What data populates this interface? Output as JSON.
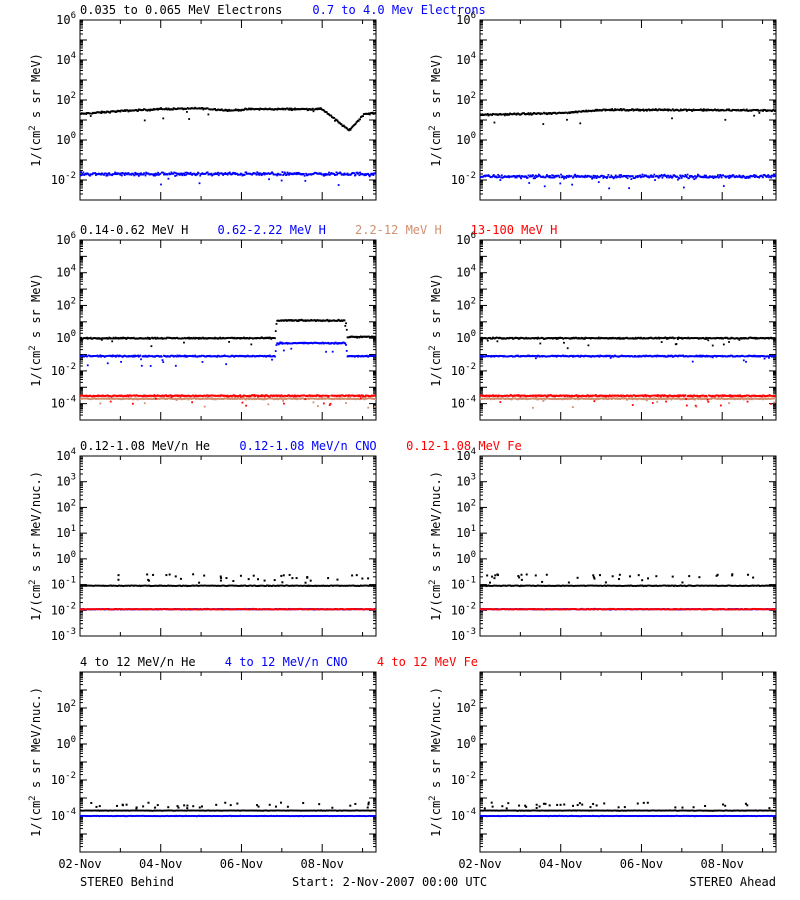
{
  "colors": {
    "black": "#000000",
    "blue": "#0000ff",
    "tan": "#d08f6f",
    "red": "#ff0000"
  },
  "footer": {
    "left": "STEREO Behind",
    "center": "Start:  2-Nov-2007 00:00 UTC",
    "right": "STEREO Ahead"
  },
  "chart_data": [
    {
      "id": "electrons-behind",
      "type": "scatter",
      "spacecraft": "STEREO Behind",
      "ylabel": "1/(cm² s sr MeV)",
      "yscale": "log",
      "ylim": [
        0.001,
        1000000
      ],
      "ytick_exponents": [
        -2,
        0,
        2,
        4,
        6
      ],
      "xlim": [
        "2007-11-02",
        "2007-11-09T08:00"
      ],
      "xticks": [
        "02-Nov",
        "04-Nov",
        "06-Nov",
        "08-Nov"
      ],
      "legend": [
        {
          "text": "0.035 to 0.065 MeV Electrons",
          "color": "#000000"
        },
        {
          "text": "0.7 to 4.0 Mev Electrons",
          "color": "#0000ff"
        }
      ],
      "series": [
        {
          "name": "0.035 to 0.065 MeV Electrons",
          "color": "#000000",
          "x": [
            "2007-11-02",
            "2007-11-03",
            "2007-11-04",
            "2007-11-05",
            "2007-11-05T18:00",
            "2007-11-06T06:00",
            "2007-11-07",
            "2007-11-08",
            "2007-11-08T16:00",
            "2007-11-09T01:00",
            "2007-11-09T08:00"
          ],
          "values": [
            20,
            28,
            35,
            38,
            30,
            35,
            35,
            35,
            3,
            20,
            22
          ]
        },
        {
          "name": "0.7 to 4.0 Mev Electrons",
          "color": "#0000ff",
          "x": [
            "2007-11-02",
            "2007-11-09T08:00"
          ],
          "values": [
            0.02,
            0.02
          ]
        }
      ]
    },
    {
      "id": "electrons-ahead",
      "type": "scatter",
      "spacecraft": "STEREO Ahead",
      "ylabel": "1/(cm² s sr MeV)",
      "yscale": "log",
      "ylim": [
        0.001,
        1000000
      ],
      "ytick_exponents": [
        -2,
        0,
        2,
        4,
        6
      ],
      "xlim": [
        "2007-11-02",
        "2007-11-09T08:00"
      ],
      "xticks": [
        "02-Nov",
        "04-Nov",
        "06-Nov",
        "08-Nov"
      ],
      "series": [
        {
          "name": "0.035 to 0.065 MeV Electrons",
          "color": "#000000",
          "x": [
            "2007-11-02",
            "2007-11-04",
            "2007-11-05",
            "2007-11-07",
            "2007-11-09T08:00"
          ],
          "values": [
            18,
            22,
            32,
            32,
            30
          ]
        },
        {
          "name": "0.7 to 4.0 Mev Electrons",
          "color": "#0000ff",
          "x": [
            "2007-11-02",
            "2007-11-09T08:00"
          ],
          "values": [
            0.015,
            0.015
          ]
        }
      ]
    },
    {
      "id": "protons-behind",
      "type": "scatter",
      "spacecraft": "STEREO Behind",
      "ylabel": "1/(cm² s sr MeV)",
      "yscale": "log",
      "ylim": [
        1e-05,
        1000000
      ],
      "ytick_exponents": [
        -4,
        -2,
        0,
        2,
        4,
        6
      ],
      "xlim": [
        "2007-11-02",
        "2007-11-09T08:00"
      ],
      "xticks": [
        "02-Nov",
        "04-Nov",
        "06-Nov",
        "08-Nov"
      ],
      "legend": [
        {
          "text": "0.14-0.62 MeV H",
          "color": "#000000"
        },
        {
          "text": "0.62-2.22 MeV H",
          "color": "#0000ff"
        },
        {
          "text": "2.2-12 MeV H",
          "color": "#d08f6f"
        },
        {
          "text": "13-100 MeV H",
          "color": "#ff0000"
        }
      ],
      "series": [
        {
          "name": "0.14-0.62 MeV H",
          "color": "#000000",
          "x": [
            "2007-11-02",
            "2007-11-06T20:00",
            "2007-11-06T21:00",
            "2007-11-08T14:00",
            "2007-11-08T15:00",
            "2007-11-09T08:00"
          ],
          "values": [
            1,
            1,
            12,
            12,
            1.2,
            1.2
          ]
        },
        {
          "name": "0.62-2.22 MeV H",
          "color": "#0000ff",
          "x": [
            "2007-11-02",
            "2007-11-06T20:00",
            "2007-11-06T21:00",
            "2007-11-08T14:00",
            "2007-11-08T15:00",
            "2007-11-09T08:00"
          ],
          "values": [
            0.08,
            0.08,
            0.5,
            0.5,
            0.08,
            0.08
          ]
        },
        {
          "name": "2.2-12 MeV H",
          "color": "#d08f6f",
          "x": [
            "2007-11-02",
            "2007-11-09T08:00"
          ],
          "values": [
            0.0002,
            0.0002
          ]
        },
        {
          "name": "13-100 MeV H",
          "color": "#ff0000",
          "x": [
            "2007-11-02",
            "2007-11-09T08:00"
          ],
          "values": [
            0.0003,
            0.0003
          ]
        }
      ]
    },
    {
      "id": "protons-ahead",
      "type": "scatter",
      "spacecraft": "STEREO Ahead",
      "ylabel": "1/(cm² s sr MeV)",
      "yscale": "log",
      "ylim": [
        1e-05,
        1000000
      ],
      "ytick_exponents": [
        -4,
        -2,
        0,
        2,
        4,
        6
      ],
      "xlim": [
        "2007-11-02",
        "2007-11-09T08:00"
      ],
      "xticks": [
        "02-Nov",
        "04-Nov",
        "06-Nov",
        "08-Nov"
      ],
      "series": [
        {
          "name": "0.14-0.62 MeV H",
          "color": "#000000",
          "x": [
            "2007-11-02",
            "2007-11-09T08:00"
          ],
          "values": [
            1,
            1
          ]
        },
        {
          "name": "0.62-2.22 MeV H",
          "color": "#0000ff",
          "x": [
            "2007-11-02",
            "2007-11-09T08:00"
          ],
          "values": [
            0.08,
            0.08
          ]
        },
        {
          "name": "2.2-12 MeV H",
          "color": "#d08f6f",
          "x": [
            "2007-11-02",
            "2007-11-09T08:00"
          ],
          "values": [
            0.0002,
            0.0002
          ]
        },
        {
          "name": "13-100 MeV H",
          "color": "#ff0000",
          "x": [
            "2007-11-02",
            "2007-11-09T08:00"
          ],
          "values": [
            0.0003,
            0.0003
          ]
        }
      ]
    },
    {
      "id": "heavy-low-behind",
      "type": "scatter",
      "spacecraft": "STEREO Behind",
      "ylabel": "1/(cm² s sr MeV/nuc.)",
      "yscale": "log",
      "ylim": [
        0.001,
        10000
      ],
      "ytick_exponents": [
        -3,
        -2,
        -1,
        0,
        1,
        2,
        3,
        4
      ],
      "xlim": [
        "2007-11-02",
        "2007-11-09T08:00"
      ],
      "xticks": [
        "02-Nov",
        "04-Nov",
        "06-Nov",
        "08-Nov"
      ],
      "legend": [
        {
          "text": "0.12-1.08 MeV/n He",
          "color": "#000000"
        },
        {
          "text": "0.12-1.08 MeV/n CNO",
          "color": "#0000ff"
        },
        {
          "text": "0.12-1.08 MeV Fe",
          "color": "#ff0000"
        }
      ],
      "series": [
        {
          "name": "0.12-1.08 MeV/n He",
          "color": "#000000",
          "x": [
            "2007-11-02",
            "2007-11-09T08:00"
          ],
          "values": [
            0.09,
            0.09
          ]
        },
        {
          "name": "0.12-1.08 MeV/n CNO",
          "color": "#0000ff",
          "x": [
            "2007-11-02",
            "2007-11-09T08:00"
          ],
          "values": [
            0.011,
            0.011
          ]
        },
        {
          "name": "0.12-1.08 MeV Fe",
          "color": "#ff0000",
          "x": [
            "2007-11-02",
            "2007-11-09T08:00"
          ],
          "values": [
            0.011,
            0.011
          ]
        }
      ]
    },
    {
      "id": "heavy-low-ahead",
      "type": "scatter",
      "spacecraft": "STEREO Ahead",
      "ylabel": "1/(cm² s sr MeV/nuc.)",
      "yscale": "log",
      "ylim": [
        0.001,
        10000
      ],
      "ytick_exponents": [
        -3,
        -2,
        -1,
        0,
        1,
        2,
        3,
        4
      ],
      "xlim": [
        "2007-11-02",
        "2007-11-09T08:00"
      ],
      "xticks": [
        "02-Nov",
        "04-Nov",
        "06-Nov",
        "08-Nov"
      ],
      "series": [
        {
          "name": "0.12-1.08 MeV/n He",
          "color": "#000000",
          "x": [
            "2007-11-02",
            "2007-11-09T08:00"
          ],
          "values": [
            0.09,
            0.09
          ]
        },
        {
          "name": "0.12-1.08 MeV/n CNO",
          "color": "#0000ff",
          "x": [
            "2007-11-02",
            "2007-11-09T08:00"
          ],
          "values": [
            0.011,
            0.011
          ]
        },
        {
          "name": "0.12-1.08 MeV Fe",
          "color": "#ff0000",
          "x": [
            "2007-11-02",
            "2007-11-09T08:00"
          ],
          "values": [
            0.011,
            0.011
          ]
        }
      ]
    },
    {
      "id": "heavy-high-behind",
      "type": "scatter",
      "spacecraft": "STEREO Behind",
      "ylabel": "1/(cm² s sr MeV/nuc.)",
      "yscale": "log",
      "ylim": [
        1e-06,
        10000
      ],
      "ytick_exponents": [
        -4,
        -2,
        0,
        2
      ],
      "xlim": [
        "2007-11-02",
        "2007-11-09T08:00"
      ],
      "xticks": [
        "02-Nov",
        "04-Nov",
        "06-Nov",
        "08-Nov"
      ],
      "legend": [
        {
          "text": "4 to 12 MeV/n He",
          "color": "#000000"
        },
        {
          "text": "4 to 12 MeV/n CNO",
          "color": "#0000ff"
        },
        {
          "text": "4 to 12 MeV Fe",
          "color": "#ff0000"
        }
      ],
      "series": [
        {
          "name": "4 to 12 MeV/n He",
          "color": "#000000",
          "x": [
            "2007-11-02",
            "2007-11-09T08:00"
          ],
          "values": [
            0.0002,
            0.0002
          ]
        },
        {
          "name": "4 to 12 MeV/n CNO",
          "color": "#0000ff",
          "x": [
            "2007-11-02",
            "2007-11-09T08:00"
          ],
          "values": [
            0.0001,
            0.0001
          ]
        }
      ]
    },
    {
      "id": "heavy-high-ahead",
      "type": "scatter",
      "spacecraft": "STEREO Ahead",
      "ylabel": "1/(cm² s sr MeV/nuc.)",
      "yscale": "log",
      "ylim": [
        1e-06,
        10000
      ],
      "ytick_exponents": [
        -4,
        -2,
        0,
        2
      ],
      "xlim": [
        "2007-11-02",
        "2007-11-09T08:00"
      ],
      "xticks": [
        "02-Nov",
        "04-Nov",
        "06-Nov",
        "08-Nov"
      ],
      "series": [
        {
          "name": "4 to 12 MeV/n He",
          "color": "#000000",
          "x": [
            "2007-11-02",
            "2007-11-09T08:00"
          ],
          "values": [
            0.0002,
            0.0002
          ]
        },
        {
          "name": "4 to 12 MeV/n CNO",
          "color": "#0000ff",
          "x": [
            "2007-11-02",
            "2007-11-09T08:00"
          ],
          "values": [
            0.0001,
            0.0001
          ]
        }
      ]
    }
  ]
}
